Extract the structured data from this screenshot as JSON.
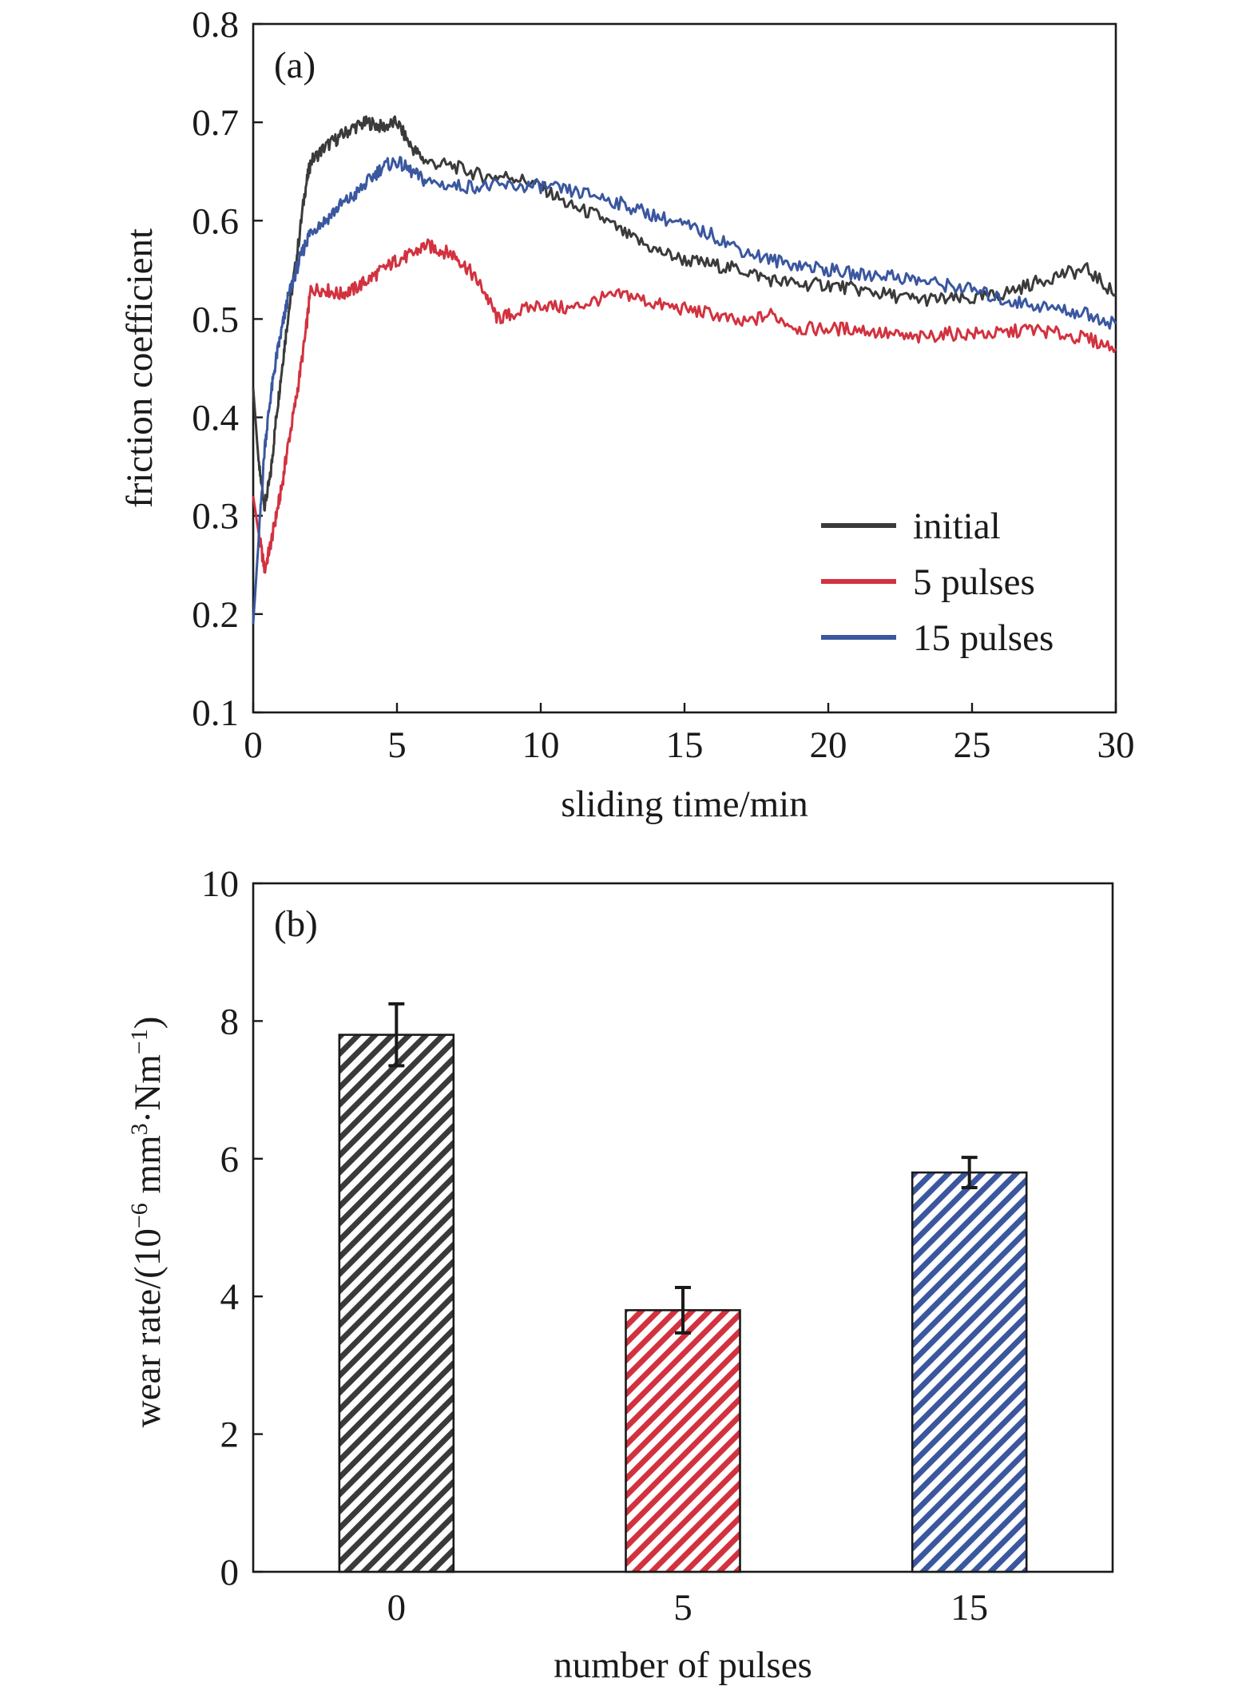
{
  "chart_data": [
    {
      "type": "line",
      "panel_label": "(a)",
      "xlabel": "sliding time/min",
      "ylabel": "friction coefficient",
      "xlim": [
        0,
        30
      ],
      "ylim": [
        0.1,
        0.8
      ],
      "x_ticks": [
        "0",
        "5",
        "10",
        "15",
        "20",
        "25",
        "30"
      ],
      "y_ticks": [
        "0.1",
        "0.2",
        "0.3",
        "0.4",
        "0.5",
        "0.6",
        "0.7",
        "0.8"
      ],
      "legend_position": "bottom-right",
      "series": [
        {
          "name": "initial",
          "color": "#3a3a3a",
          "x": [
            0,
            0.2,
            0.4,
            0.6,
            0.8,
            1.0,
            1.2,
            1.5,
            1.8,
            2.0,
            2.5,
            3.0,
            3.5,
            4.0,
            4.5,
            5.0,
            5.5,
            6.0,
            7.0,
            8.0,
            9.0,
            10.0,
            11.0,
            12.0,
            13.0,
            14.0,
            15.0,
            16.0,
            17.0,
            18.0,
            19.0,
            20.0,
            21.0,
            22.0,
            23.0,
            24.0,
            25.0,
            26.0,
            27.0,
            28.0,
            29.0,
            30.0
          ],
          "y": [
            0.43,
            0.35,
            0.31,
            0.34,
            0.4,
            0.45,
            0.5,
            0.56,
            0.63,
            0.66,
            0.675,
            0.685,
            0.695,
            0.7,
            0.695,
            0.7,
            0.675,
            0.66,
            0.655,
            0.645,
            0.645,
            0.635,
            0.615,
            0.605,
            0.585,
            0.57,
            0.56,
            0.555,
            0.55,
            0.54,
            0.535,
            0.535,
            0.53,
            0.525,
            0.52,
            0.52,
            0.52,
            0.525,
            0.535,
            0.545,
            0.55,
            0.525
          ]
        },
        {
          "name": "5 pulses",
          "color": "#d2323f",
          "x": [
            0,
            0.2,
            0.4,
            0.6,
            0.8,
            1.0,
            1.2,
            1.5,
            1.8,
            2.0,
            2.5,
            3.0,
            3.5,
            4.0,
            4.5,
            5.0,
            5.5,
            6.0,
            6.5,
            7.0,
            7.5,
            8.0,
            8.5,
            9.0,
            10.0,
            11.0,
            12.0,
            13.0,
            14.0,
            15.0,
            16.0,
            17.0,
            18.0,
            19.0,
            20.0,
            21.0,
            22.0,
            23.0,
            24.0,
            25.0,
            26.0,
            27.0,
            28.0,
            29.0,
            30.0
          ],
          "y": [
            0.32,
            0.28,
            0.245,
            0.27,
            0.3,
            0.33,
            0.37,
            0.42,
            0.48,
            0.53,
            0.53,
            0.525,
            0.53,
            0.54,
            0.55,
            0.56,
            0.565,
            0.575,
            0.57,
            0.565,
            0.55,
            0.53,
            0.5,
            0.505,
            0.515,
            0.51,
            0.52,
            0.525,
            0.515,
            0.51,
            0.505,
            0.495,
            0.505,
            0.49,
            0.49,
            0.49,
            0.485,
            0.48,
            0.485,
            0.485,
            0.485,
            0.49,
            0.485,
            0.48,
            0.47
          ]
        },
        {
          "name": "15 pulses",
          "color": "#3a579f",
          "x": [
            0,
            0.2,
            0.4,
            0.6,
            0.8,
            1.0,
            1.2,
            1.5,
            1.8,
            2.0,
            2.5,
            3.0,
            3.5,
            4.0,
            4.5,
            5.0,
            5.5,
            6.0,
            7.0,
            8.0,
            9.0,
            10.0,
            11.0,
            12.0,
            13.0,
            14.0,
            15.0,
            16.0,
            17.0,
            18.0,
            19.0,
            20.0,
            21.0,
            22.0,
            23.0,
            24.0,
            25.0,
            26.0,
            27.0,
            28.0,
            29.0,
            30.0
          ],
          "y": [
            0.19,
            0.28,
            0.37,
            0.42,
            0.46,
            0.49,
            0.52,
            0.55,
            0.575,
            0.59,
            0.6,
            0.615,
            0.625,
            0.64,
            0.655,
            0.66,
            0.65,
            0.64,
            0.635,
            0.635,
            0.635,
            0.635,
            0.63,
            0.625,
            0.615,
            0.605,
            0.595,
            0.585,
            0.57,
            0.56,
            0.555,
            0.55,
            0.545,
            0.545,
            0.54,
            0.535,
            0.53,
            0.52,
            0.515,
            0.51,
            0.505,
            0.495
          ]
        }
      ]
    },
    {
      "type": "bar",
      "panel_label": "(b)",
      "xlabel": "number of pulses",
      "ylabel": "wear rate/(10−6 mm3·Nm−1)",
      "ylabel_parts": {
        "prefix": "wear rate/(10",
        "exp1": "−6",
        "mid": " mm",
        "exp2": "3",
        "mid2": "·Nm",
        "exp3": "−1",
        "suffix": ")"
      },
      "categories": [
        "0",
        "5",
        "15"
      ],
      "values": [
        7.8,
        3.8,
        5.8
      ],
      "errors": [
        0.45,
        0.33,
        0.22
      ],
      "colors": [
        "#3a3a3a",
        "#d2323f",
        "#3a579f"
      ],
      "fill_pattern": "diagonal-hatch",
      "ylim": [
        0,
        10
      ],
      "y_ticks": [
        "0",
        "2",
        "4",
        "6",
        "8",
        "10"
      ]
    }
  ]
}
